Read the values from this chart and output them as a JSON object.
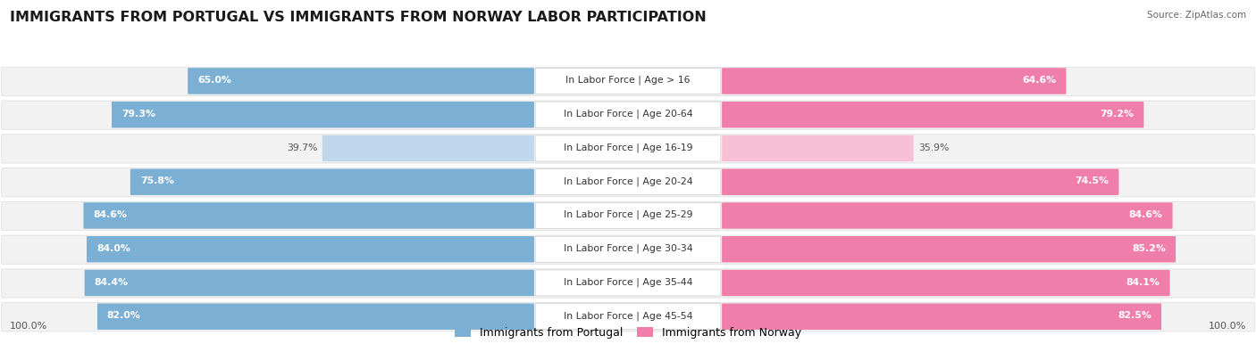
{
  "title": "IMMIGRANTS FROM PORTUGAL VS IMMIGRANTS FROM NORWAY LABOR PARTICIPATION",
  "source": "Source: ZipAtlas.com",
  "categories": [
    "In Labor Force | Age > 16",
    "In Labor Force | Age 20-64",
    "In Labor Force | Age 16-19",
    "In Labor Force | Age 20-24",
    "In Labor Force | Age 25-29",
    "In Labor Force | Age 30-34",
    "In Labor Force | Age 35-44",
    "In Labor Force | Age 45-54"
  ],
  "portugal_values": [
    65.0,
    79.3,
    39.7,
    75.8,
    84.6,
    84.0,
    84.4,
    82.0
  ],
  "norway_values": [
    64.6,
    79.2,
    35.9,
    74.5,
    84.6,
    85.2,
    84.1,
    82.5
  ],
  "portugal_color": "#7BAFD4",
  "portugal_color_light": "#C0D8EE",
  "norway_color": "#F07EAA",
  "norway_color_light": "#F9C0D5",
  "row_bg_color": "#F2F2F2",
  "row_edge_color": "#E0E0E0",
  "max_value": 100.0,
  "legend_portugal": "Immigrants from Portugal",
  "legend_norway": "Immigrants from Norway",
  "title_fontsize": 11.5,
  "label_fontsize": 7.8,
  "value_fontsize": 7.8,
  "source_fontsize": 7.5,
  "bottom_label": "100.0%"
}
